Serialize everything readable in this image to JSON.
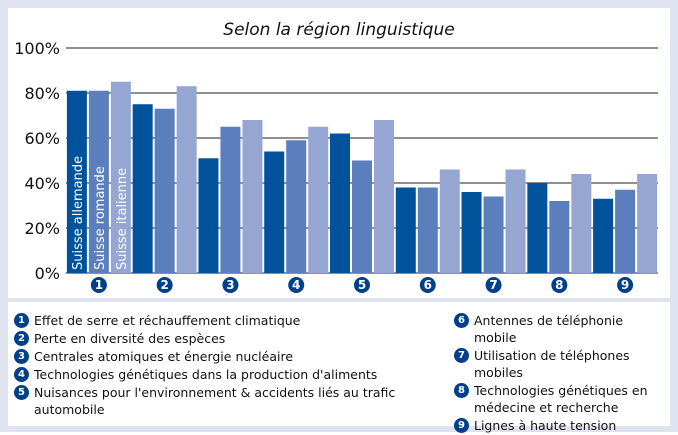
{
  "chart_data": {
    "type": "bar",
    "title": "Selon la région linguistique",
    "categories": [
      "1",
      "2",
      "3",
      "4",
      "5",
      "6",
      "7",
      "8",
      "9"
    ],
    "series": [
      {
        "name": "Suisse allemande",
        "color": "#00529b",
        "values": [
          81,
          75,
          51,
          54,
          62,
          38,
          36,
          40,
          33
        ]
      },
      {
        "name": "Suisse romande",
        "color": "#5b7fbc",
        "values": [
          81,
          73,
          65,
          59,
          50,
          38,
          34,
          32,
          37
        ]
      },
      {
        "name": "Suisse italienne",
        "color": "#94a6d1",
        "values": [
          85,
          83,
          68,
          65,
          68,
          46,
          46,
          44,
          44
        ]
      }
    ],
    "ylim": [
      0,
      100
    ],
    "yticks": [
      "0%",
      "20%",
      "40%",
      "60%",
      "80%",
      "100%"
    ],
    "grid": true
  },
  "legend": {
    "left": [
      {
        "num": "1",
        "text": "Effet de serre et réchauffement climatique"
      },
      {
        "num": "2",
        "text": "Perte en diversité des espèces"
      },
      {
        "num": "3",
        "text": "Centrales atomiques et énergie nucléaire"
      },
      {
        "num": "4",
        "text": "Technologies génétiques dans la production d'aliments"
      },
      {
        "num": "5",
        "text": "Nuisances pour l'environnement & accidents liés au trafic automobile"
      }
    ],
    "right": [
      {
        "num": "6",
        "text": "Antennes de téléphonie mobile"
      },
      {
        "num": "7",
        "text": "Utilisation de téléphones mobiles"
      },
      {
        "num": "8",
        "text": "Technologies génétiques en médecine et recherche"
      },
      {
        "num": "9",
        "text": "Lignes à haute tension"
      }
    ]
  },
  "colors": {
    "badge": "#003f8c",
    "background": "#dfe3ef"
  }
}
